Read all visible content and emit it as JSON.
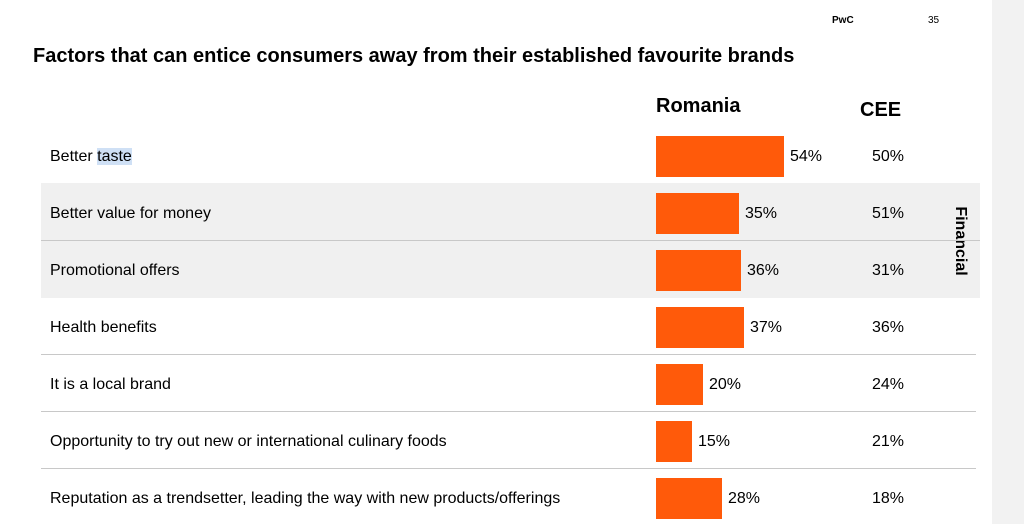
{
  "header": {
    "brand": "PwC",
    "page_number": "35"
  },
  "chart_data": {
    "type": "bar",
    "orientation": "horizontal",
    "title": "Factors that can entice consumers away from their established favourite brands",
    "column_headers": {
      "bars": "Romania",
      "comparison": "CEE"
    },
    "group_label": "Financial",
    "categories": [
      "Better taste",
      "Better value for money",
      "Promotional offers",
      "Health benefits",
      "It is a local brand",
      "Opportunity to try out new or international culinary foods",
      "Reputation as a trendsetter, leading the way with new products/offerings"
    ],
    "series": [
      {
        "name": "Romania",
        "values": [
          54,
          35,
          36,
          37,
          20,
          15,
          28
        ],
        "labels": [
          "54%",
          "35%",
          "36%",
          "37%",
          "20%",
          "15%",
          "28%"
        ],
        "color": "#ff5a0a"
      },
      {
        "name": "CEE",
        "values": [
          50,
          51,
          31,
          36,
          24,
          21,
          18
        ],
        "labels": [
          "50%",
          "51%",
          "31%",
          "36%",
          "24%",
          "21%",
          "18%"
        ]
      }
    ],
    "unit": "%",
    "grid": false
  },
  "colors": {
    "bar": "#ff5a0a",
    "financial_band": "#f0f0f0",
    "selection_highlight": "#cfe0f5"
  }
}
